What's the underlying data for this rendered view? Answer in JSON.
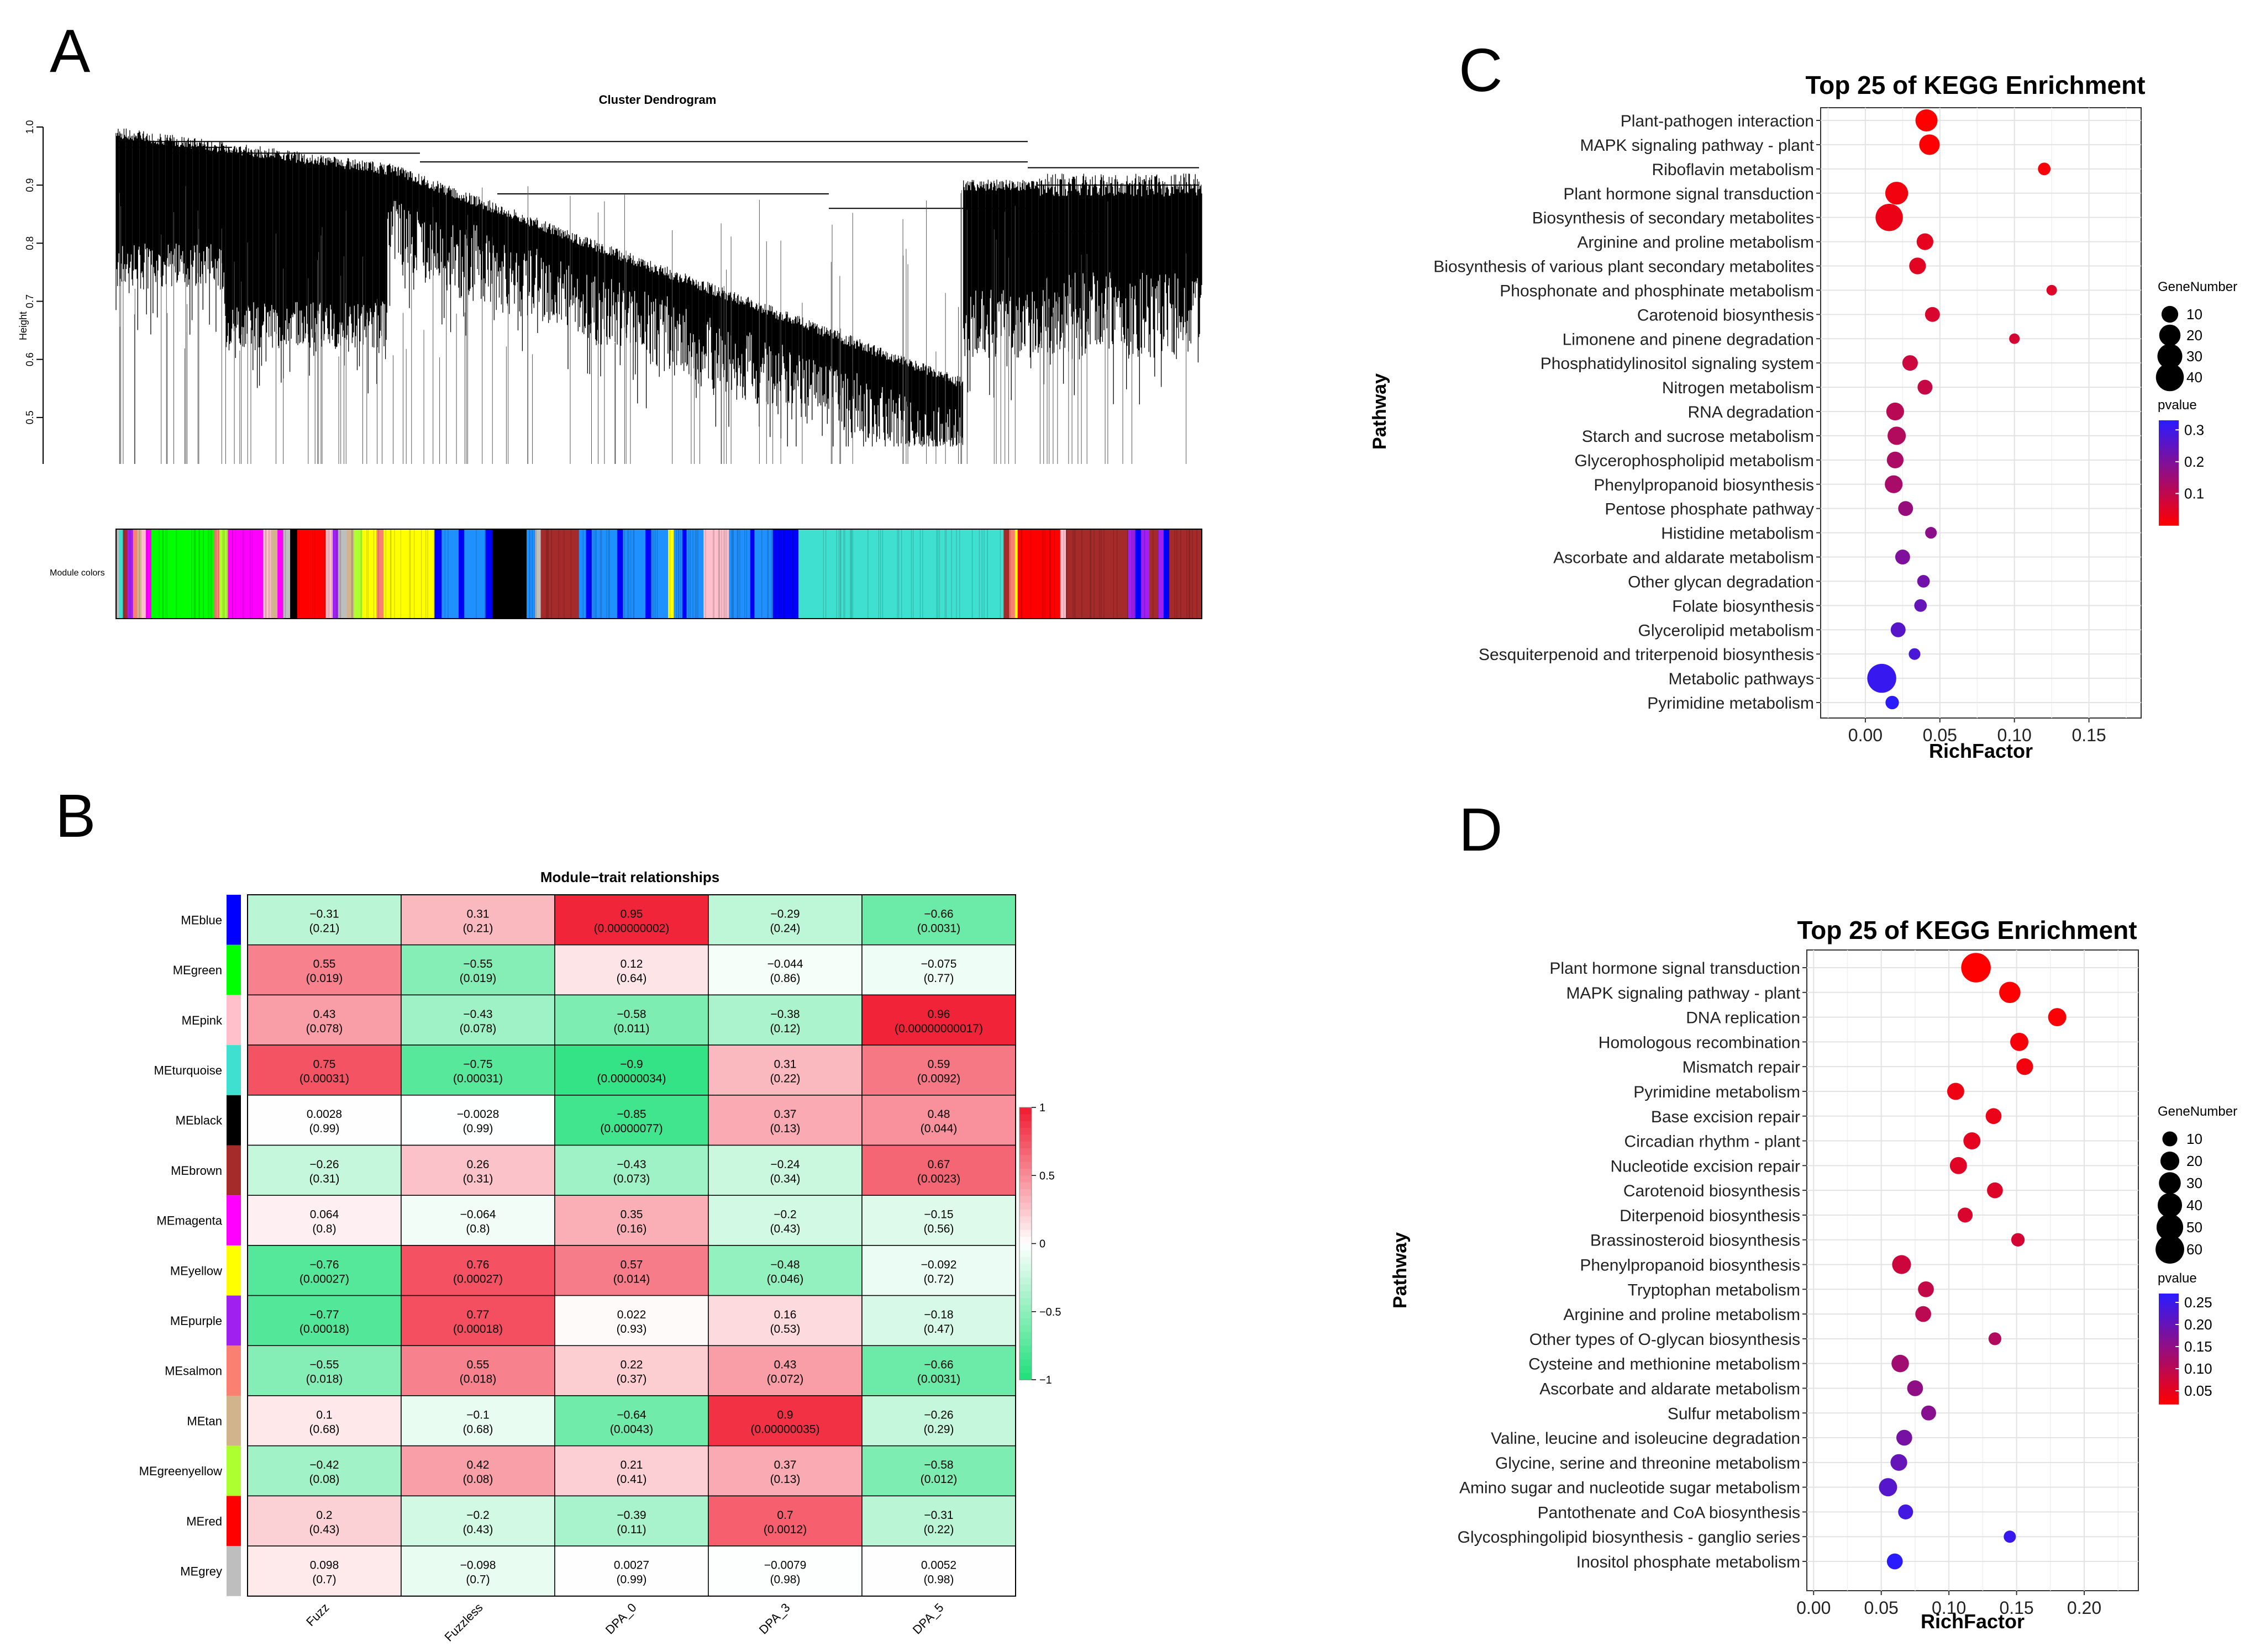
{
  "chart_data": [
    {
      "panel": "A",
      "type": "dendrogram",
      "title": "Cluster Dendrogram",
      "ylabel": "Height",
      "yticks": [
        "0.5",
        "0.6",
        "0.7",
        "0.8",
        "0.9",
        "1.0"
      ],
      "ylim": [
        0.42,
        1.0
      ],
      "color_row_label": "Module colors",
      "module_colors": {
        "turquoise": "#40E0D0",
        "blue": "#0000FF",
        "brown": "#A52A2A",
        "yellow": "#FFFF00",
        "green": "#00FF00",
        "red": "#FF0000",
        "black": "#000000",
        "pink": "#FFC0CB",
        "magenta": "#FF00FF",
        "purple": "#A020F0",
        "greenyellow": "#ADFF2F",
        "tan": "#D2B48C",
        "salmon": "#FA8072",
        "grey": "#BEBEBE",
        "royal": "#1E90FF"
      }
    },
    {
      "panel": "B",
      "type": "heatmap",
      "title": "Module−trait relationships",
      "columns": [
        "Fuzz",
        "Fuzzless",
        "DPA_0",
        "DPA_3",
        "DPA_5"
      ],
      "rows": [
        {
          "name": "MEblue",
          "color": "#0000FF",
          "values": [
            -0.31,
            0.31,
            0.95,
            -0.29,
            -0.66
          ],
          "cells": [
            [
              "−0.31",
              "(0.21)"
            ],
            [
              "0.31",
              "(0.21)"
            ],
            [
              "0.95",
              "(0.000000002)"
            ],
            [
              "−0.29",
              "(0.24)"
            ],
            [
              "−0.66",
              "(0.0031)"
            ]
          ]
        },
        {
          "name": "MEgreen",
          "color": "#00FF00",
          "values": [
            0.55,
            -0.55,
            0.12,
            -0.044,
            -0.075
          ],
          "cells": [
            [
              "0.55",
              "(0.019)"
            ],
            [
              "−0.55",
              "(0.019)"
            ],
            [
              "0.12",
              "(0.64)"
            ],
            [
              "−0.044",
              "(0.86)"
            ],
            [
              "−0.075",
              "(0.77)"
            ]
          ]
        },
        {
          "name": "MEpink",
          "color": "#FFC0CB",
          "values": [
            0.43,
            -0.43,
            -0.58,
            -0.38,
            0.96
          ],
          "cells": [
            [
              "0.43",
              "(0.078)"
            ],
            [
              "−0.43",
              "(0.078)"
            ],
            [
              "−0.58",
              "(0.011)"
            ],
            [
              "−0.38",
              "(0.12)"
            ],
            [
              "0.96",
              "(0.00000000017)"
            ]
          ]
        },
        {
          "name": "MEturquoise",
          "color": "#40E0D0",
          "values": [
            0.75,
            -0.75,
            -0.9,
            0.31,
            0.59
          ],
          "cells": [
            [
              "0.75",
              "(0.00031)"
            ],
            [
              "−0.75",
              "(0.00031)"
            ],
            [
              "−0.9",
              "(0.00000034)"
            ],
            [
              "0.31",
              "(0.22)"
            ],
            [
              "0.59",
              "(0.0092)"
            ]
          ]
        },
        {
          "name": "MEblack",
          "color": "#000000",
          "values": [
            0.0028,
            -0.0028,
            -0.85,
            0.37,
            0.48
          ],
          "cells": [
            [
              "0.0028",
              "(0.99)"
            ],
            [
              "−0.0028",
              "(0.99)"
            ],
            [
              "−0.85",
              "(0.0000077)"
            ],
            [
              "0.37",
              "(0.13)"
            ],
            [
              "0.48",
              "(0.044)"
            ]
          ]
        },
        {
          "name": "MEbrown",
          "color": "#A52A2A",
          "values": [
            -0.26,
            0.26,
            -0.43,
            -0.24,
            0.67
          ],
          "cells": [
            [
              "−0.26",
              "(0.31)"
            ],
            [
              "0.26",
              "(0.31)"
            ],
            [
              "−0.43",
              "(0.073)"
            ],
            [
              "−0.24",
              "(0.34)"
            ],
            [
              "0.67",
              "(0.0023)"
            ]
          ]
        },
        {
          "name": "MEmagenta",
          "color": "#FF00FF",
          "values": [
            0.064,
            -0.064,
            0.35,
            -0.2,
            -0.15
          ],
          "cells": [
            [
              "0.064",
              "(0.8)"
            ],
            [
              "−0.064",
              "(0.8)"
            ],
            [
              "0.35",
              "(0.16)"
            ],
            [
              "−0.2",
              "(0.43)"
            ],
            [
              "−0.15",
              "(0.56)"
            ]
          ]
        },
        {
          "name": "MEyellow",
          "color": "#FFFF00",
          "values": [
            -0.76,
            0.76,
            0.57,
            -0.48,
            -0.092
          ],
          "cells": [
            [
              "−0.76",
              "(0.00027)"
            ],
            [
              "0.76",
              "(0.00027)"
            ],
            [
              "0.57",
              "(0.014)"
            ],
            [
              "−0.48",
              "(0.046)"
            ],
            [
              "−0.092",
              "(0.72)"
            ]
          ]
        },
        {
          "name": "MEpurple",
          "color": "#A020F0",
          "values": [
            -0.77,
            0.77,
            0.022,
            0.16,
            -0.18
          ],
          "cells": [
            [
              "−0.77",
              "(0.00018)"
            ],
            [
              "0.77",
              "(0.00018)"
            ],
            [
              "0.022",
              "(0.93)"
            ],
            [
              "0.16",
              "(0.53)"
            ],
            [
              "−0.18",
              "(0.47)"
            ]
          ]
        },
        {
          "name": "MEsalmon",
          "color": "#FA8072",
          "values": [
            -0.55,
            0.55,
            0.22,
            0.43,
            -0.66
          ],
          "cells": [
            [
              "−0.55",
              "(0.018)"
            ],
            [
              "0.55",
              "(0.018)"
            ],
            [
              "0.22",
              "(0.37)"
            ],
            [
              "0.43",
              "(0.072)"
            ],
            [
              "−0.66",
              "(0.0031)"
            ]
          ]
        },
        {
          "name": "MEtan",
          "color": "#D2B48C",
          "values": [
            0.1,
            -0.1,
            -0.64,
            0.9,
            -0.26
          ],
          "cells": [
            [
              "0.1",
              "(0.68)"
            ],
            [
              "−0.1",
              "(0.68)"
            ],
            [
              "−0.64",
              "(0.0043)"
            ],
            [
              "0.9",
              "(0.00000035)"
            ],
            [
              "−0.26",
              "(0.29)"
            ]
          ]
        },
        {
          "name": "MEgreenyellow",
          "color": "#ADFF2F",
          "values": [
            -0.42,
            0.42,
            0.21,
            0.37,
            -0.58
          ],
          "cells": [
            [
              "−0.42",
              "(0.08)"
            ],
            [
              "0.42",
              "(0.08)"
            ],
            [
              "0.21",
              "(0.41)"
            ],
            [
              "0.37",
              "(0.13)"
            ],
            [
              "−0.58",
              "(0.012)"
            ]
          ]
        },
        {
          "name": "MEred",
          "color": "#FF0000",
          "values": [
            0.2,
            -0.2,
            -0.39,
            0.7,
            -0.31
          ],
          "cells": [
            [
              "0.2",
              "(0.43)"
            ],
            [
              "−0.2",
              "(0.43)"
            ],
            [
              "−0.39",
              "(0.11)"
            ],
            [
              "0.7",
              "(0.0012)"
            ],
            [
              "−0.31",
              "(0.22)"
            ]
          ]
        },
        {
          "name": "MEgrey",
          "color": "#BEBEBE",
          "values": [
            0.098,
            -0.098,
            0.0027,
            -0.0079,
            0.0052
          ],
          "cells": [
            [
              "0.098",
              "(0.7)"
            ],
            [
              "−0.098",
              "(0.7)"
            ],
            [
              "0.0027",
              "(0.99)"
            ],
            [
              "−0.0079",
              "(0.98)"
            ],
            [
              "0.0052",
              "(0.98)"
            ]
          ]
        }
      ],
      "colorbar": {
        "ticks": [
          "1",
          "0.5",
          "0",
          "−0.5",
          "−1"
        ],
        "range": [
          -1,
          1
        ],
        "colors": {
          "low": "#1FE07A",
          "mid": "#FFFFFF",
          "high": "#F01A30"
        }
      }
    },
    {
      "panel": "C",
      "type": "scatter",
      "title": "Top 25 of KEGG Enrichment",
      "xlabel": "RichFactor",
      "ylabel": "Pathway",
      "xlim": [
        -0.03,
        0.185
      ],
      "xticks": [
        0.0,
        0.05,
        0.1,
        0.15
      ],
      "xtick_labels": [
        "0.00",
        "0.05",
        "0.10",
        "0.15"
      ],
      "size_legend": {
        "title": "GeneNumber",
        "values": [
          10,
          20,
          30,
          40
        ]
      },
      "color_legend": {
        "title": "pvalue",
        "range": [
          0.0,
          0.33
        ],
        "ticks": [
          0.3,
          0.2,
          0.1
        ],
        "tick_labels": [
          "0.3",
          "0.2",
          "0.1"
        ]
      },
      "points": [
        {
          "pathway": "Plant-pathogen interaction",
          "x": 0.041,
          "gene": 22,
          "p": 0.0
        },
        {
          "pathway": "MAPK signaling pathway - plant",
          "x": 0.043,
          "gene": 18,
          "p": 0.005
        },
        {
          "pathway": "Riboflavin metabolism",
          "x": 0.12,
          "gene": 4,
          "p": 0.01
        },
        {
          "pathway": "Plant hormone signal transduction",
          "x": 0.021,
          "gene": 24,
          "p": 0.02
        },
        {
          "pathway": "Biosynthesis of secondary metabolites",
          "x": 0.016,
          "gene": 38,
          "p": 0.03
        },
        {
          "pathway": "Arginine and proline metabolism",
          "x": 0.04,
          "gene": 10,
          "p": 0.04
        },
        {
          "pathway": "Biosynthesis of various plant secondary metabolites",
          "x": 0.035,
          "gene": 10,
          "p": 0.045
        },
        {
          "pathway": "Phosphonate and phosphinate metabolism",
          "x": 0.125,
          "gene": 2,
          "p": 0.05
        },
        {
          "pathway": "Carotenoid biosynthesis",
          "x": 0.045,
          "gene": 7,
          "p": 0.06
        },
        {
          "pathway": "Limonene and pinene degradation",
          "x": 0.1,
          "gene": 2,
          "p": 0.065
        },
        {
          "pathway": "Phosphatidylinositol signaling system",
          "x": 0.03,
          "gene": 8,
          "p": 0.08
        },
        {
          "pathway": "Nitrogen metabolism",
          "x": 0.04,
          "gene": 7,
          "p": 0.09
        },
        {
          "pathway": "RNA degradation",
          "x": 0.02,
          "gene": 12,
          "p": 0.11
        },
        {
          "pathway": "Starch and sucrose metabolism",
          "x": 0.021,
          "gene": 13,
          "p": 0.12
        },
        {
          "pathway": "Glycerophospholipid metabolism",
          "x": 0.02,
          "gene": 10,
          "p": 0.13
        },
        {
          "pathway": "Phenylpropanoid biosynthesis",
          "x": 0.019,
          "gene": 12,
          "p": 0.135
        },
        {
          "pathway": "Pentose phosphate pathway",
          "x": 0.027,
          "gene": 7,
          "p": 0.16
        },
        {
          "pathway": "Histidine metabolism",
          "x": 0.044,
          "gene": 3,
          "p": 0.18
        },
        {
          "pathway": "Ascorbate and aldarate metabolism",
          "x": 0.025,
          "gene": 7,
          "p": 0.2
        },
        {
          "pathway": "Other glycan degradation",
          "x": 0.039,
          "gene": 4,
          "p": 0.22
        },
        {
          "pathway": "Folate biosynthesis",
          "x": 0.037,
          "gene": 4,
          "p": 0.24
        },
        {
          "pathway": "Glycerolipid metabolism",
          "x": 0.022,
          "gene": 7,
          "p": 0.26
        },
        {
          "pathway": "Sesquiterpenoid and triterpenoid biosynthesis",
          "x": 0.033,
          "gene": 3,
          "p": 0.28
        },
        {
          "pathway": "Metabolic pathways",
          "x": 0.011,
          "gene": 44,
          "p": 0.31
        },
        {
          "pathway": "Pyrimidine metabolism",
          "x": 0.018,
          "gene": 5,
          "p": 0.33
        }
      ]
    },
    {
      "panel": "D",
      "type": "scatter",
      "title": "Top 25 of KEGG Enrichment",
      "xlabel": "RichFactor",
      "ylabel": "Pathway",
      "xlim": [
        -0.005,
        0.24
      ],
      "xticks": [
        0.0,
        0.05,
        0.1,
        0.15,
        0.2
      ],
      "xtick_labels": [
        "0.00",
        "0.05",
        "0.10",
        "0.15",
        "0.20"
      ],
      "size_legend": {
        "title": "GeneNumber",
        "values": [
          10,
          20,
          30,
          40,
          50,
          60
        ]
      },
      "color_legend": {
        "title": "pvalue",
        "range": [
          0.02,
          0.27
        ],
        "ticks": [
          0.25,
          0.2,
          0.15,
          0.1,
          0.05
        ],
        "tick_labels": [
          "0.25",
          "0.20",
          "0.15",
          "0.10",
          "0.05"
        ]
      },
      "points": [
        {
          "pathway": "Plant hormone signal transduction",
          "x": 0.12,
          "gene": 65,
          "p": 0.02
        },
        {
          "pathway": "MAPK signaling pathway - plant",
          "x": 0.145,
          "gene": 28,
          "p": 0.022
        },
        {
          "pathway": "DNA replication",
          "x": 0.18,
          "gene": 18,
          "p": 0.025
        },
        {
          "pathway": "Homologous recombination",
          "x": 0.152,
          "gene": 18,
          "p": 0.03
        },
        {
          "pathway": "Mismatch repair",
          "x": 0.156,
          "gene": 14,
          "p": 0.033
        },
        {
          "pathway": "Pyrimidine metabolism",
          "x": 0.105,
          "gene": 15,
          "p": 0.04
        },
        {
          "pathway": "Base excision repair",
          "x": 0.133,
          "gene": 12,
          "p": 0.045
        },
        {
          "pathway": "Circadian rhythm - plant",
          "x": 0.117,
          "gene": 15,
          "p": 0.05
        },
        {
          "pathway": "Nucleotide excision repair",
          "x": 0.107,
          "gene": 15,
          "p": 0.055
        },
        {
          "pathway": "Carotenoid biosynthesis",
          "x": 0.134,
          "gene": 12,
          "p": 0.06
        },
        {
          "pathway": "Diterpenoid biosynthesis",
          "x": 0.112,
          "gene": 10,
          "p": 0.065
        },
        {
          "pathway": "Brassinosteroid biosynthesis",
          "x": 0.151,
          "gene": 7,
          "p": 0.07
        },
        {
          "pathway": "Phenylpropanoid biosynthesis",
          "x": 0.065,
          "gene": 20,
          "p": 0.08
        },
        {
          "pathway": "Tryptophan metabolism",
          "x": 0.083,
          "gene": 12,
          "p": 0.09
        },
        {
          "pathway": "Arginine and proline metabolism",
          "x": 0.081,
          "gene": 12,
          "p": 0.1
        },
        {
          "pathway": "Other types of O-glycan biosynthesis",
          "x": 0.134,
          "gene": 6,
          "p": 0.11
        },
        {
          "pathway": "Cysteine and methionine metabolism",
          "x": 0.064,
          "gene": 16,
          "p": 0.13
        },
        {
          "pathway": "Ascorbate and aldarate metabolism",
          "x": 0.075,
          "gene": 12,
          "p": 0.15
        },
        {
          "pathway": "Sulfur metabolism",
          "x": 0.085,
          "gene": 10,
          "p": 0.16
        },
        {
          "pathway": "Valine, leucine and isoleucine degradation",
          "x": 0.067,
          "gene": 12,
          "p": 0.18
        },
        {
          "pathway": "Glycine, serine and threonine metabolism",
          "x": 0.063,
          "gene": 14,
          "p": 0.2
        },
        {
          "pathway": "Amino sugar and nucleotide sugar metabolism",
          "x": 0.055,
          "gene": 18,
          "p": 0.22
        },
        {
          "pathway": "Pantothenate and CoA biosynthesis",
          "x": 0.068,
          "gene": 10,
          "p": 0.24
        },
        {
          "pathway": "Glycosphingolipid biosynthesis - ganglio series",
          "x": 0.145,
          "gene": 5,
          "p": 0.255
        },
        {
          "pathway": "Inositol phosphate metabolism",
          "x": 0.06,
          "gene": 12,
          "p": 0.27
        }
      ]
    }
  ],
  "panel_letters": {
    "a": "A",
    "b": "B",
    "c": "C",
    "d": "D"
  }
}
